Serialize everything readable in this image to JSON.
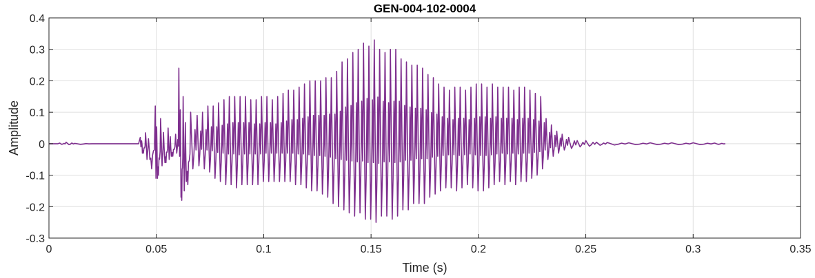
{
  "chart_data": {
    "type": "line",
    "title": "GEN-004-102-0004",
    "xlabel": "Time (s)",
    "ylabel": "Amplitude",
    "xlim": [
      0,
      0.35
    ],
    "ylim": [
      -0.3,
      0.4
    ],
    "xticks": [
      0,
      0.05,
      0.1,
      0.15,
      0.2,
      0.25,
      0.3,
      0.35
    ],
    "xtick_labels": [
      "0",
      "0.05",
      "0.1",
      "0.15",
      "0.2",
      "0.25",
      "0.3",
      "0.35"
    ],
    "yticks": [
      -0.3,
      -0.2,
      -0.1,
      0,
      0.1,
      0.2,
      0.3,
      0.4
    ],
    "ytick_labels": [
      "-0.3",
      "-0.2",
      "-0.1",
      "0",
      "0.1",
      "0.2",
      "0.3",
      "0.4"
    ],
    "grid": true,
    "series": [
      {
        "color": "#7E2F8E",
        "x": [
          0,
          0.005,
          0.008,
          0.012,
          0.02,
          0.03,
          0.038,
          0.0425,
          0.0435,
          0.045,
          0.047,
          0.0495,
          0.0505,
          0.052,
          0.054,
          0.0555,
          0.057,
          0.059,
          0.0605,
          0.0615,
          0.0625,
          0.064,
          0.066,
          0.069,
          0.0715,
          0.074,
          0.0765,
          0.079,
          0.0815,
          0.084,
          0.0865,
          0.089,
          0.0915,
          0.094,
          0.0965,
          0.099,
          0.1015,
          0.104,
          0.1065,
          0.109,
          0.1115,
          0.114,
          0.1165,
          0.119,
          0.1215,
          0.124,
          0.1265,
          0.129,
          0.1315,
          0.134,
          0.1365,
          0.139,
          0.1415,
          0.144,
          0.1465,
          0.149,
          0.1515,
          0.154,
          0.1565,
          0.159,
          0.1615,
          0.164,
          0.1665,
          0.169,
          0.1715,
          0.174,
          0.1765,
          0.179,
          0.1815,
          0.184,
          0.1865,
          0.189,
          0.1915,
          0.194,
          0.1965,
          0.199,
          0.2015,
          0.204,
          0.2065,
          0.209,
          0.2115,
          0.214,
          0.2165,
          0.219,
          0.2215,
          0.224,
          0.2265,
          0.229,
          0.2315,
          0.234,
          0.2365,
          0.239,
          0.242,
          0.246,
          0.25,
          0.255,
          0.26,
          0.27,
          0.28,
          0.29,
          0.3,
          0.31,
          0.315
        ],
        "y": [
          0,
          0.002,
          0.005,
          0.001,
          0.0,
          0.0,
          0.0,
          0.02,
          -0.03,
          0.035,
          -0.05,
          0.12,
          -0.11,
          0.08,
          -0.06,
          0.05,
          -0.04,
          0.03,
          0.24,
          -0.17,
          0.15,
          -0.12,
          0.1,
          0.09,
          0.1,
          0.12,
          0.12,
          0.13,
          0.14,
          0.15,
          0.15,
          0.15,
          0.15,
          0.14,
          0.14,
          0.15,
          0.15,
          0.14,
          0.15,
          0.16,
          0.17,
          0.17,
          0.18,
          0.19,
          0.2,
          0.2,
          0.2,
          0.21,
          0.21,
          0.23,
          0.26,
          0.27,
          0.29,
          0.3,
          0.32,
          0.31,
          0.33,
          0.3,
          0.29,
          0.3,
          0.3,
          0.27,
          0.26,
          0.25,
          0.25,
          0.24,
          0.22,
          0.21,
          0.19,
          0.18,
          0.17,
          0.18,
          0.18,
          0.17,
          0.18,
          0.19,
          0.19,
          0.18,
          0.19,
          0.18,
          0.18,
          0.18,
          0.17,
          0.18,
          0.18,
          0.17,
          0.16,
          0.15,
          0.08,
          0.06,
          0.04,
          0.03,
          0.02,
          0.01,
          0.01,
          0.005,
          0.004,
          0.003,
          0.003,
          0.003,
          0.003,
          0.002,
          0.0
        ],
        "lows": [
          0,
          -0.002,
          -0.003,
          -0.002,
          0.0,
          0.0,
          0.0,
          -0.01,
          -0.03,
          -0.05,
          -0.08,
          -0.11,
          -0.1,
          -0.07,
          -0.06,
          -0.05,
          -0.04,
          -0.03,
          -0.04,
          -0.18,
          -0.15,
          -0.13,
          -0.08,
          -0.07,
          -0.08,
          -0.09,
          -0.11,
          -0.12,
          -0.13,
          -0.13,
          -0.14,
          -0.13,
          -0.13,
          -0.13,
          -0.13,
          -0.12,
          -0.12,
          -0.12,
          -0.12,
          -0.12,
          -0.12,
          -0.13,
          -0.13,
          -0.14,
          -0.15,
          -0.15,
          -0.16,
          -0.17,
          -0.19,
          -0.2,
          -0.21,
          -0.22,
          -0.23,
          -0.22,
          -0.24,
          -0.24,
          -0.25,
          -0.23,
          -0.23,
          -0.24,
          -0.23,
          -0.21,
          -0.21,
          -0.19,
          -0.19,
          -0.19,
          -0.17,
          -0.16,
          -0.15,
          -0.14,
          -0.14,
          -0.15,
          -0.14,
          -0.13,
          -0.14,
          -0.15,
          -0.15,
          -0.14,
          -0.13,
          -0.12,
          -0.13,
          -0.12,
          -0.13,
          -0.12,
          -0.12,
          -0.11,
          -0.1,
          -0.08,
          -0.05,
          -0.04,
          -0.03,
          -0.02,
          -0.015,
          -0.01,
          -0.008,
          -0.005,
          -0.004,
          -0.003,
          -0.003,
          -0.003,
          -0.003,
          -0.002,
          0.0
        ]
      }
    ]
  }
}
